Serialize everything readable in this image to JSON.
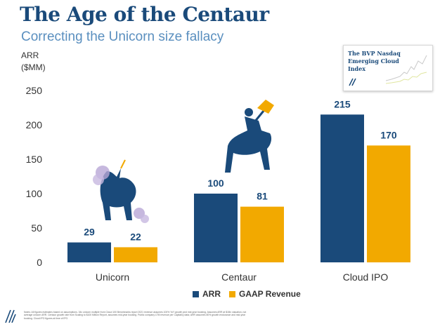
{
  "title": "The Age of the Centaur",
  "subtitle": "Correcting the Unicorn size fallacy",
  "colors": {
    "arr": "#1a4a7a",
    "gaap": "#f2a900",
    "axis_text": "#333333",
    "label_text": "#1a4a7a"
  },
  "chart_data": {
    "type": "bar",
    "ylabel": "ARR\n($MM)",
    "ylim": [
      0,
      250
    ],
    "yticks": [
      0,
      50,
      100,
      150,
      200,
      250
    ],
    "categories": [
      "Unicorn",
      "Centaur",
      "Cloud IPO"
    ],
    "series": [
      {
        "name": "ARR",
        "values": [
          29,
          100,
          215
        ],
        "color": "#1a4a7a"
      },
      {
        "name": "GAAP Revenue",
        "values": [
          22,
          81,
          170
        ],
        "color": "#f2a900"
      }
    ],
    "grid": false,
    "legend": "bottom-center"
  },
  "inset": {
    "title": "The BVP Nasdaq Emerging Cloud Index"
  },
  "illustrations": {
    "unicorn": "unicorn-icon",
    "centaur": "centaur-icon"
  },
  "notes": "Notes: All figures estimates based on assumptions. 34x unicorn multiple from Cloud 100 Benchmarks report 2021 revenue assumes 100% YoY growth and mid-year booking. Assumes ARR at $1Bn valuation, not average unicorn ARR. Centaur growth rate from Scaling to $100 Million Report, assumes mid-year booking. Public company LTM revenue per CapitalIQ data; ARR assumes 80% growth endurance and mid-year booking. Cloud IPO figures at time of IPO."
}
